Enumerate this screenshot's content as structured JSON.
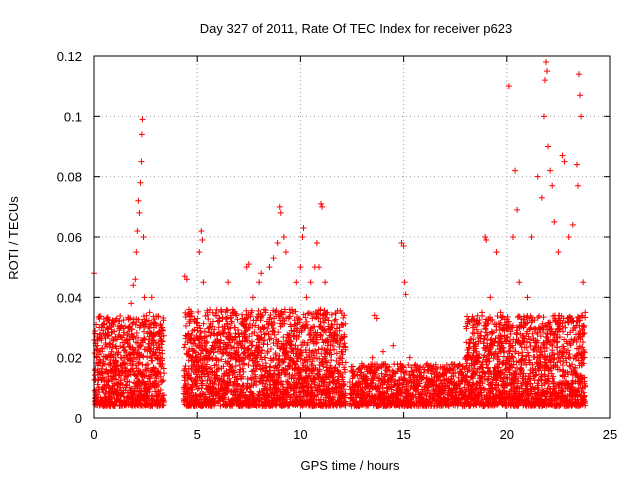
{
  "chart_data": {
    "type": "scatter",
    "title": "Day 327 of 2011, Rate Of TEC Index for receiver p623",
    "xlabel": "GPS time / hours",
    "ylabel": "ROTI / TECUs",
    "xlim": [
      0,
      25
    ],
    "ylim": [
      0,
      0.12
    ],
    "xticks": [
      0,
      5,
      10,
      15,
      20,
      25
    ],
    "yticks": [
      0,
      0.02,
      0.04,
      0.06,
      0.08,
      0.1,
      0.12
    ],
    "xtick_labels": [
      "0",
      "5",
      "10",
      "15",
      "20",
      "25"
    ],
    "ytick_labels": [
      "0",
      "0.02",
      "0.04",
      "0.06",
      "0.08",
      "0.1",
      "0.12"
    ],
    "grid": true,
    "marker": "+",
    "color": "#ff0000",
    "series": [
      {
        "points": [
          [
            0.0,
            0.048
          ],
          [
            0.05,
            0.028
          ],
          [
            0.1,
            0.031
          ],
          [
            0.15,
            0.026
          ],
          [
            0.2,
            0.018
          ],
          [
            0.25,
            0.03
          ],
          [
            0.3,
            0.022
          ],
          [
            0.4,
            0.015
          ],
          [
            0.5,
            0.012
          ],
          [
            0.6,
            0.01
          ],
          [
            0.7,
            0.008
          ],
          [
            0.8,
            0.02
          ],
          [
            0.9,
            0.013
          ],
          [
            1.0,
            0.016
          ],
          [
            1.1,
            0.009
          ],
          [
            1.2,
            0.014
          ],
          [
            1.3,
            0.02
          ],
          [
            1.4,
            0.011
          ],
          [
            1.5,
            0.025
          ],
          [
            1.6,
            0.018
          ],
          [
            1.7,
            0.03
          ],
          [
            1.8,
            0.038
          ],
          [
            1.9,
            0.044
          ],
          [
            2.0,
            0.046
          ],
          [
            2.05,
            0.055
          ],
          [
            2.1,
            0.062
          ],
          [
            2.15,
            0.072
          ],
          [
            2.2,
            0.068
          ],
          [
            2.25,
            0.078
          ],
          [
            2.3,
            0.085
          ],
          [
            2.32,
            0.094
          ],
          [
            2.35,
            0.099
          ],
          [
            2.4,
            0.06
          ],
          [
            2.45,
            0.04
          ],
          [
            2.5,
            0.032
          ],
          [
            2.6,
            0.028
          ],
          [
            2.7,
            0.035
          ],
          [
            2.8,
            0.04
          ],
          [
            2.9,
            0.03
          ],
          [
            3.0,
            0.025
          ],
          [
            3.1,
            0.02
          ],
          [
            3.2,
            0.015
          ],
          [
            3.3,
            0.03
          ],
          [
            4.4,
            0.047
          ],
          [
            4.5,
            0.046
          ],
          [
            4.6,
            0.036
          ],
          [
            4.7,
            0.025
          ],
          [
            4.8,
            0.02
          ],
          [
            5.0,
            0.03
          ],
          [
            5.1,
            0.055
          ],
          [
            5.2,
            0.062
          ],
          [
            5.25,
            0.059
          ],
          [
            5.3,
            0.045
          ],
          [
            5.5,
            0.035
          ],
          [
            5.8,
            0.028
          ],
          [
            6.0,
            0.032
          ],
          [
            6.3,
            0.025
          ],
          [
            6.5,
            0.045
          ],
          [
            6.8,
            0.03
          ],
          [
            7.0,
            0.028
          ],
          [
            7.2,
            0.033
          ],
          [
            7.4,
            0.05
          ],
          [
            7.5,
            0.051
          ],
          [
            7.7,
            0.04
          ],
          [
            8.0,
            0.045
          ],
          [
            8.1,
            0.048
          ],
          [
            8.3,
            0.035
          ],
          [
            8.5,
            0.05
          ],
          [
            8.7,
            0.053
          ],
          [
            8.9,
            0.058
          ],
          [
            9.0,
            0.07
          ],
          [
            9.05,
            0.068
          ],
          [
            9.2,
            0.06
          ],
          [
            9.3,
            0.055
          ],
          [
            9.5,
            0.035
          ],
          [
            9.8,
            0.045
          ],
          [
            10.0,
            0.05
          ],
          [
            10.1,
            0.06
          ],
          [
            10.15,
            0.063
          ],
          [
            10.3,
            0.04
          ],
          [
            10.5,
            0.045
          ],
          [
            10.7,
            0.05
          ],
          [
            10.8,
            0.058
          ],
          [
            10.9,
            0.05
          ],
          [
            11.0,
            0.071
          ],
          [
            11.05,
            0.07
          ],
          [
            11.2,
            0.045
          ],
          [
            11.5,
            0.03
          ],
          [
            11.8,
            0.025
          ],
          [
            12.0,
            0.022
          ],
          [
            12.5,
            0.01
          ],
          [
            13.0,
            0.012
          ],
          [
            13.5,
            0.02
          ],
          [
            13.6,
            0.034
          ],
          [
            13.7,
            0.033
          ],
          [
            14.0,
            0.022
          ],
          [
            14.5,
            0.024
          ],
          [
            14.9,
            0.058
          ],
          [
            15.0,
            0.057
          ],
          [
            15.05,
            0.045
          ],
          [
            15.1,
            0.041
          ],
          [
            15.3,
            0.02
          ],
          [
            15.8,
            0.014
          ],
          [
            16.2,
            0.016
          ],
          [
            16.6,
            0.014
          ],
          [
            17.0,
            0.016
          ],
          [
            17.5,
            0.015
          ],
          [
            18.0,
            0.014
          ],
          [
            18.3,
            0.018
          ],
          [
            18.6,
            0.028
          ],
          [
            18.8,
            0.035
          ],
          [
            18.95,
            0.06
          ],
          [
            19.0,
            0.059
          ],
          [
            19.2,
            0.04
          ],
          [
            19.5,
            0.055
          ],
          [
            19.7,
            0.035
          ],
          [
            20.0,
            0.03
          ],
          [
            20.1,
            0.11
          ],
          [
            20.3,
            0.06
          ],
          [
            20.4,
            0.082
          ],
          [
            20.5,
            0.069
          ],
          [
            20.6,
            0.045
          ],
          [
            20.8,
            0.03
          ],
          [
            21.0,
            0.04
          ],
          [
            21.2,
            0.06
          ],
          [
            21.5,
            0.08
          ],
          [
            21.7,
            0.073
          ],
          [
            21.8,
            0.1
          ],
          [
            21.85,
            0.112
          ],
          [
            21.9,
            0.118
          ],
          [
            21.95,
            0.115
          ],
          [
            22.0,
            0.09
          ],
          [
            22.1,
            0.082
          ],
          [
            22.2,
            0.077
          ],
          [
            22.3,
            0.065
          ],
          [
            22.5,
            0.055
          ],
          [
            22.7,
            0.087
          ],
          [
            22.8,
            0.085
          ],
          [
            23.0,
            0.06
          ],
          [
            23.2,
            0.064
          ],
          [
            23.4,
            0.084
          ],
          [
            23.45,
            0.077
          ],
          [
            23.5,
            0.114
          ],
          [
            23.55,
            0.107
          ],
          [
            23.6,
            0.1
          ],
          [
            23.7,
            0.045
          ],
          [
            23.8,
            0.035
          ]
        ]
      }
    ]
  },
  "generated_density": {
    "segments": [
      {
        "start": 0.02,
        "end": 3.4,
        "base": 0.004,
        "spread": 0.03,
        "step": 0.012
      },
      {
        "start": 4.35,
        "end": 12.2,
        "base": 0.004,
        "spread": 0.032,
        "step": 0.012
      },
      {
        "start": 12.4,
        "end": 18.0,
        "base": 0.004,
        "spread": 0.014,
        "step": 0.018
      },
      {
        "start": 18.0,
        "end": 23.8,
        "base": 0.004,
        "spread": 0.03,
        "step": 0.012
      }
    ]
  }
}
